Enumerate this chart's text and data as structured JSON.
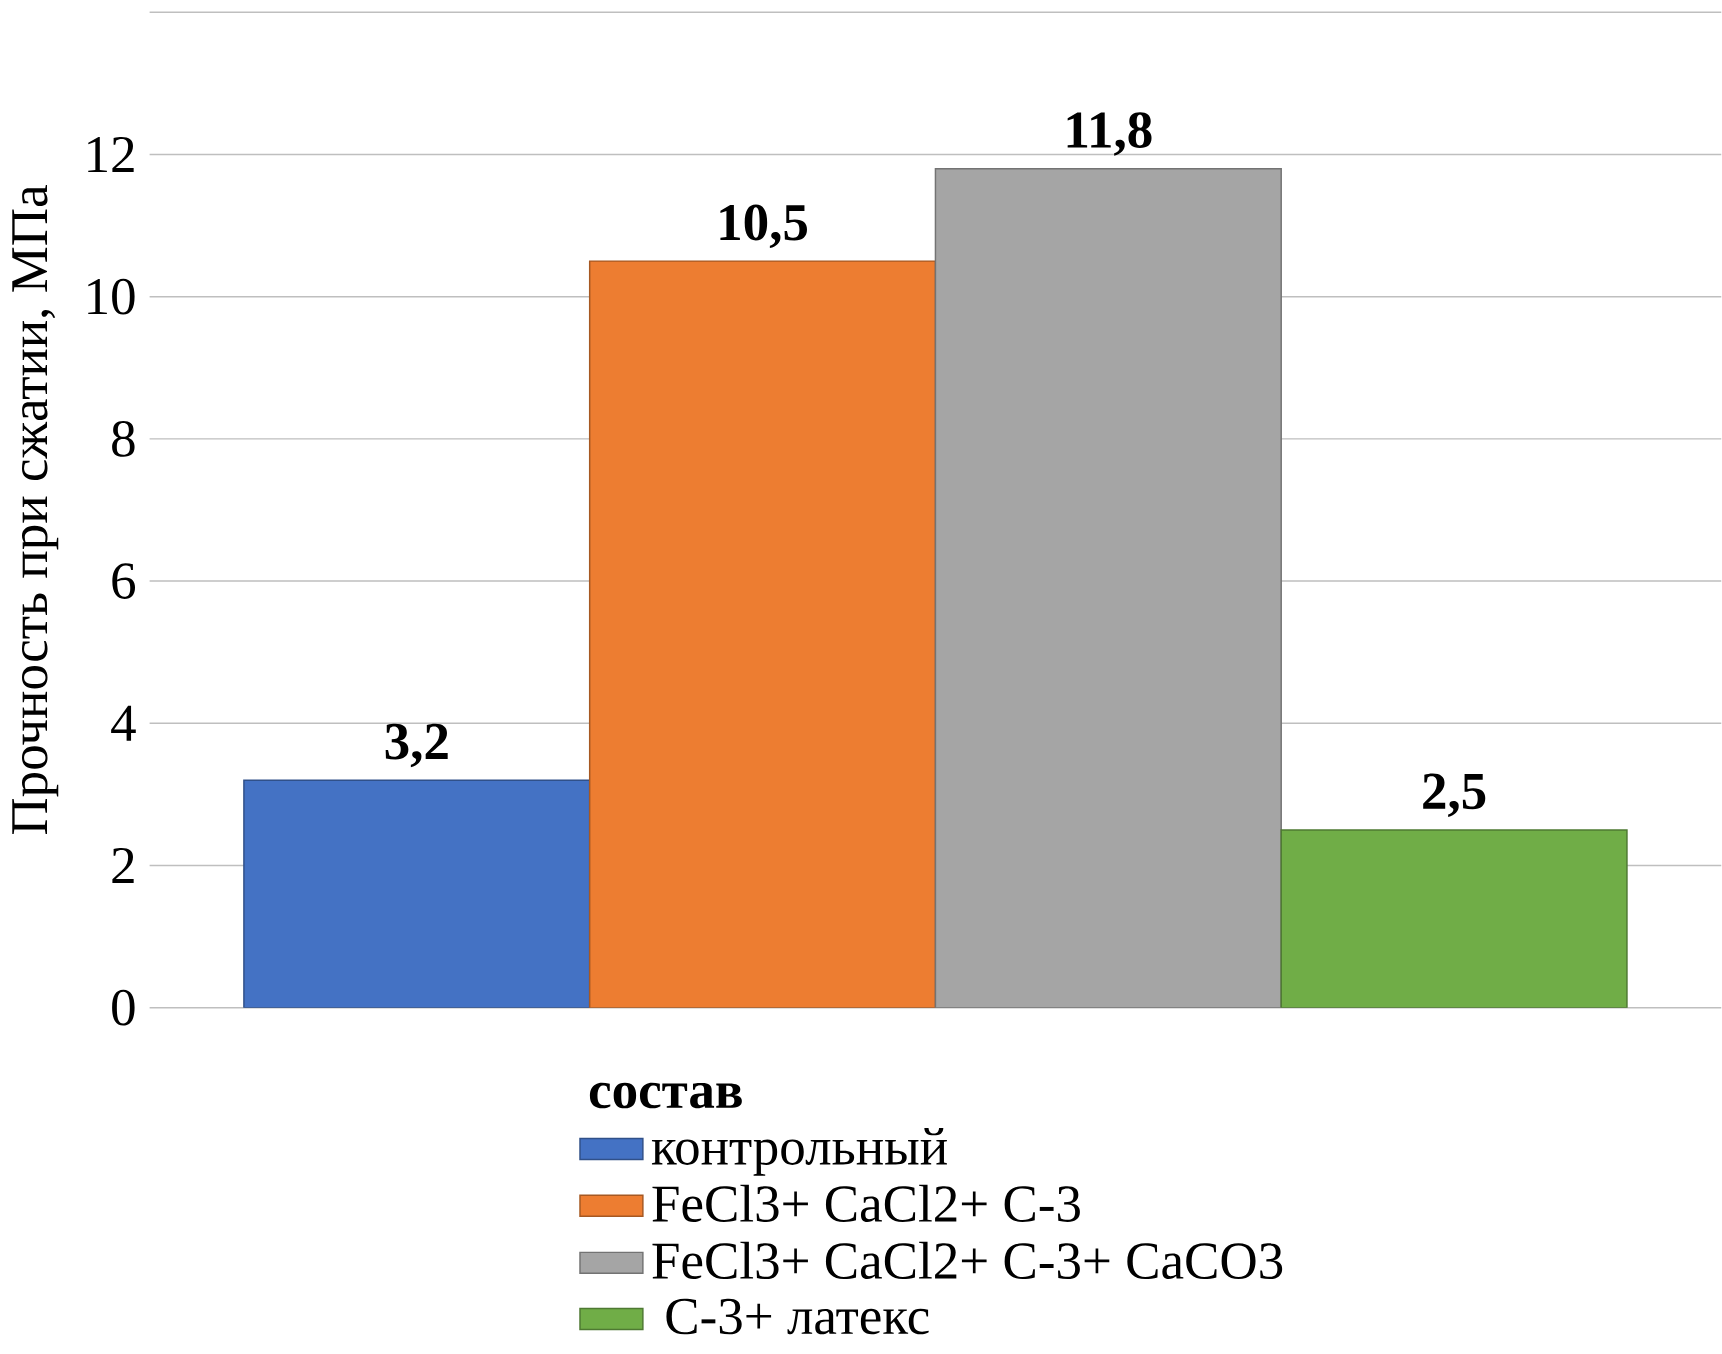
{
  "chart_data": {
    "type": "bar",
    "ylabel": "Прочность при сжатии, МПа",
    "legend_title": "состав",
    "categories": [
      null
    ],
    "series": [
      {
        "name": "контрольный",
        "color": "#4472c4",
        "values": [
          3.2
        ],
        "value_labels": [
          "3,2"
        ]
      },
      {
        "name": "FeCl3+ CaCl2+ C-3",
        "color": "#ed7d31",
        "values": [
          10.5
        ],
        "value_labels": [
          "10,5"
        ]
      },
      {
        "name": "FeCl3+ CaCl2+ C-3+ CaCO3",
        "color": "#a5a5a5",
        "values": [
          11.8
        ],
        "value_labels": [
          "11,8"
        ]
      },
      {
        "name": " C-3+ латекс",
        "color": "#70ad47",
        "values": [
          2.5
        ],
        "value_labels": [
          "2,5"
        ]
      }
    ],
    "ylim": [
      0,
      14
    ],
    "yticks": [
      0,
      2,
      4,
      6,
      8,
      10,
      12,
      {
        "value": 14,
        "label": null
      }
    ],
    "grid": "y",
    "legend": "bottom"
  }
}
